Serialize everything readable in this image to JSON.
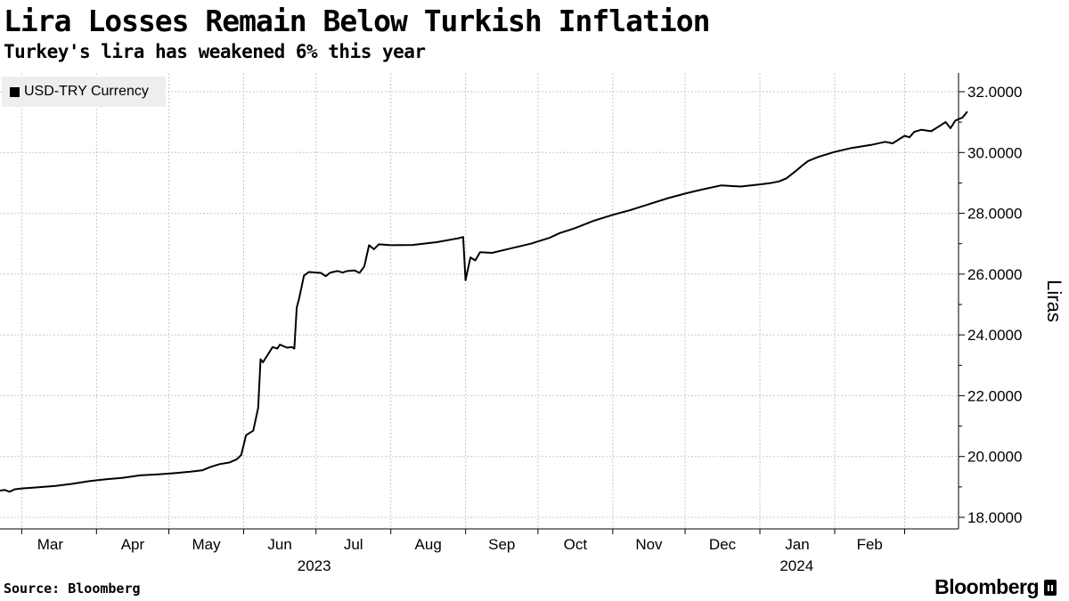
{
  "header": {
    "title": "Lira Losses Remain Below Turkish Inflation",
    "subtitle": "Turkey's lira has weakened 6% this year"
  },
  "footer": {
    "source": "Source: Bloomberg",
    "brand": "Bloomberg"
  },
  "chart_data": {
    "type": "line",
    "title": "Lira Losses Remain Below Turkish Inflation",
    "subtitle": "Turkey's lira has weakened 6% this year",
    "ylabel": "Liras",
    "xlabel": "",
    "ylim": [
      18.0,
      32.0
    ],
    "yticks": [
      32.0,
      30.0,
      28.0,
      26.0,
      24.0,
      22.0,
      20.0,
      18.0
    ],
    "ytick_labels": [
      "32.0000",
      "30.0000",
      "28.0000",
      "26.0000",
      "24.0000",
      "22.0000",
      "20.0000",
      "18.0000"
    ],
    "xlim": [
      "2023-02-20",
      "2024-03-13"
    ],
    "month_labels": [
      {
        "label": "Mar",
        "date": "2023-03-01"
      },
      {
        "label": "Apr",
        "date": "2023-04-01"
      },
      {
        "label": "May",
        "date": "2023-05-01"
      },
      {
        "label": "Jun",
        "date": "2023-06-01"
      },
      {
        "label": "Jul",
        "date": "2023-07-01"
      },
      {
        "label": "Aug",
        "date": "2023-08-01"
      },
      {
        "label": "Sep",
        "date": "2023-09-01"
      },
      {
        "label": "Oct",
        "date": "2023-10-01"
      },
      {
        "label": "Nov",
        "date": "2023-11-01"
      },
      {
        "label": "Dec",
        "date": "2023-12-01"
      },
      {
        "label": "Jan",
        "date": "2024-01-01"
      },
      {
        "label": "Feb",
        "date": "2024-02-01"
      }
    ],
    "year_labels": [
      {
        "label": "2023",
        "date": "2023-07-15"
      },
      {
        "label": "2024",
        "date": "2024-01-31"
      }
    ],
    "legend": {
      "position": "top-left",
      "entries": [
        "USD-TRY Currency"
      ]
    },
    "grid": true,
    "colors": {
      "line": "#000000",
      "grid": "#c8c8c8",
      "legend_bg": "#eeeeee"
    },
    "series": [
      {
        "name": "USD-TRY Currency",
        "points": [
          [
            "2023-02-20",
            18.88
          ],
          [
            "2023-02-22",
            18.9
          ],
          [
            "2023-02-24",
            18.84
          ],
          [
            "2023-02-26",
            18.92
          ],
          [
            "2023-03-01",
            18.95
          ],
          [
            "2023-03-08",
            18.99
          ],
          [
            "2023-03-15",
            19.03
          ],
          [
            "2023-03-22",
            19.1
          ],
          [
            "2023-03-29",
            19.19
          ],
          [
            "2023-04-05",
            19.25
          ],
          [
            "2023-04-12",
            19.3
          ],
          [
            "2023-04-19",
            19.38
          ],
          [
            "2023-04-26",
            19.41
          ],
          [
            "2023-05-03",
            19.45
          ],
          [
            "2023-05-10",
            19.5
          ],
          [
            "2023-05-15",
            19.55
          ],
          [
            "2023-05-18",
            19.65
          ],
          [
            "2023-05-22",
            19.75
          ],
          [
            "2023-05-26",
            19.8
          ],
          [
            "2023-05-29",
            19.9
          ],
          [
            "2023-05-31",
            20.05
          ],
          [
            "2023-06-02",
            20.7
          ],
          [
            "2023-06-05",
            20.85
          ],
          [
            "2023-06-07",
            21.6
          ],
          [
            "2023-06-08",
            23.2
          ],
          [
            "2023-06-09",
            23.1
          ],
          [
            "2023-06-13",
            23.6
          ],
          [
            "2023-06-15",
            23.55
          ],
          [
            "2023-06-16",
            23.68
          ],
          [
            "2023-06-19",
            23.58
          ],
          [
            "2023-06-21",
            23.6
          ],
          [
            "2023-06-22",
            23.55
          ],
          [
            "2023-06-23",
            24.9
          ],
          [
            "2023-06-24",
            25.2
          ],
          [
            "2023-06-26",
            25.95
          ],
          [
            "2023-06-28",
            26.07
          ],
          [
            "2023-07-03",
            26.04
          ],
          [
            "2023-07-05",
            25.93
          ],
          [
            "2023-07-07",
            26.05
          ],
          [
            "2023-07-10",
            26.1
          ],
          [
            "2023-07-12",
            26.05
          ],
          [
            "2023-07-14",
            26.1
          ],
          [
            "2023-07-17",
            26.12
          ],
          [
            "2023-07-19",
            26.04
          ],
          [
            "2023-07-21",
            26.25
          ],
          [
            "2023-07-23",
            26.95
          ],
          [
            "2023-07-25",
            26.82
          ],
          [
            "2023-07-27",
            26.98
          ],
          [
            "2023-08-01",
            26.95
          ],
          [
            "2023-08-10",
            26.96
          ],
          [
            "2023-08-20",
            27.05
          ],
          [
            "2023-08-29",
            27.18
          ],
          [
            "2023-08-31",
            27.22
          ],
          [
            "2023-09-01",
            25.8
          ],
          [
            "2023-09-03",
            26.55
          ],
          [
            "2023-09-05",
            26.45
          ],
          [
            "2023-09-07",
            26.72
          ],
          [
            "2023-09-12",
            26.7
          ],
          [
            "2023-09-20",
            26.85
          ],
          [
            "2023-09-28",
            27.0
          ],
          [
            "2023-10-06",
            27.2
          ],
          [
            "2023-10-10",
            27.35
          ],
          [
            "2023-10-16",
            27.5
          ],
          [
            "2023-10-24",
            27.75
          ],
          [
            "2023-11-01",
            27.95
          ],
          [
            "2023-11-08",
            28.1
          ],
          [
            "2023-11-16",
            28.3
          ],
          [
            "2023-11-24",
            28.5
          ],
          [
            "2023-12-01",
            28.65
          ],
          [
            "2023-12-08",
            28.78
          ],
          [
            "2023-12-16",
            28.92
          ],
          [
            "2023-12-24",
            28.88
          ],
          [
            "2024-01-01",
            28.95
          ],
          [
            "2024-01-05",
            28.99
          ],
          [
            "2024-01-09",
            29.05
          ],
          [
            "2024-01-12",
            29.15
          ],
          [
            "2024-01-16",
            29.4
          ],
          [
            "2024-01-19",
            29.6
          ],
          [
            "2024-01-21",
            29.72
          ],
          [
            "2024-01-25",
            29.85
          ],
          [
            "2024-02-01",
            30.02
          ],
          [
            "2024-02-08",
            30.15
          ],
          [
            "2024-02-16",
            30.25
          ],
          [
            "2024-02-22",
            30.35
          ],
          [
            "2024-02-25",
            30.3
          ],
          [
            "2024-02-28",
            30.45
          ],
          [
            "2024-03-01",
            30.55
          ],
          [
            "2024-03-03",
            30.5
          ],
          [
            "2024-03-05",
            30.68
          ],
          [
            "2024-03-08",
            30.75
          ],
          [
            "2024-03-12",
            30.7
          ],
          [
            "2024-03-15",
            30.85
          ],
          [
            "2024-03-18",
            31.0
          ],
          [
            "2024-03-20",
            30.8
          ],
          [
            "2024-03-22",
            31.05
          ],
          [
            "2024-03-25",
            31.15
          ],
          [
            "2024-03-27",
            31.35
          ]
        ]
      }
    ]
  }
}
